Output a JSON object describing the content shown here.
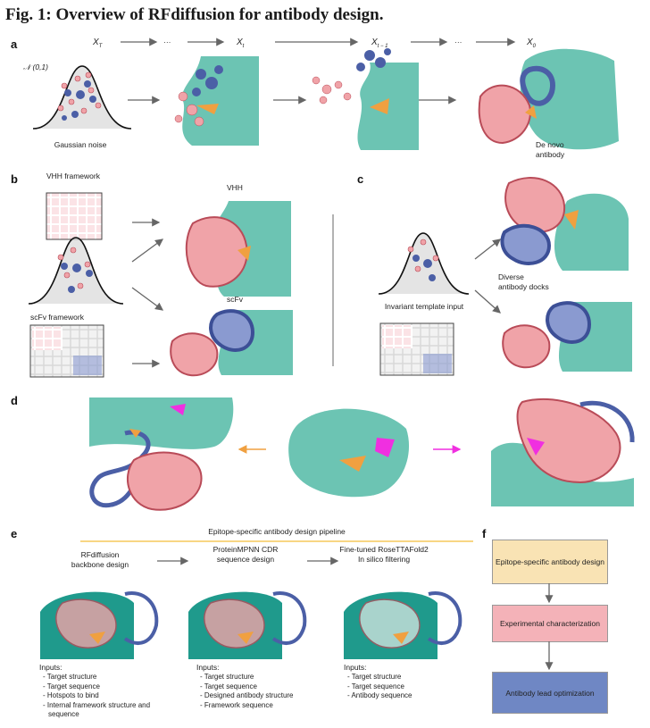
{
  "figure": {
    "title": "Fig. 1: Overview of RFdiffusion for antibody design."
  },
  "panel_a": {
    "label": "a",
    "steps": [
      "X_T",
      "···",
      "X_t",
      "X_t−1",
      "···",
      "X_0"
    ],
    "noise_symbol": "𝒩 (0,1)",
    "noise_caption": "Gaussian noise",
    "final_caption": "De novo antibody"
  },
  "panel_b": {
    "label": "b",
    "vhh_framework": "VHH framework",
    "scfv_framework": "scFv framework",
    "vhh": "VHH",
    "scfv": "scFv"
  },
  "panel_c": {
    "label": "c",
    "template_caption": "Invariant template input",
    "docks_caption": "Diverse antibody docks"
  },
  "panel_d": {
    "label": "d"
  },
  "panel_e": {
    "label": "e",
    "pipeline_title": "Epitope-specific antibody design pipeline",
    "stages": [
      {
        "title": "RFdiffusion backbone design",
        "inputs_label": "Inputs:",
        "inputs": [
          "Target structure",
          "Target sequence",
          "Hotspots to bind",
          "Internal framework structure and sequence"
        ]
      },
      {
        "title": "ProteinMPNN CDR sequence design",
        "inputs_label": "Inputs:",
        "inputs": [
          "Target structure",
          "Target sequence",
          "Designed antibody structure",
          "Framework sequence"
        ]
      },
      {
        "title": "Fine-tuned RoseTTAFold2 In silico filtering",
        "inputs_label": "Inputs:",
        "inputs": [
          "Target structure",
          "Target sequence",
          "Antibody sequence"
        ]
      }
    ]
  },
  "panel_f": {
    "label": "f",
    "boxes": [
      {
        "text": "Epitope-specific antibody design",
        "color": "#f9e3b4"
      },
      {
        "text": "Experimental characterization",
        "color": "#f4b2b8"
      },
      {
        "text": "Antibody lead optimization",
        "color": "#6f87c4"
      }
    ]
  },
  "colors": {
    "target": "#6cc4b3",
    "binder": "#f0a3a8",
    "binder_dark": "#b94b58",
    "framework": "#4b5fa6",
    "epitope": "#f0a040",
    "hotspot": "#f02fe0",
    "pipeline_line": "#f5c95a"
  }
}
